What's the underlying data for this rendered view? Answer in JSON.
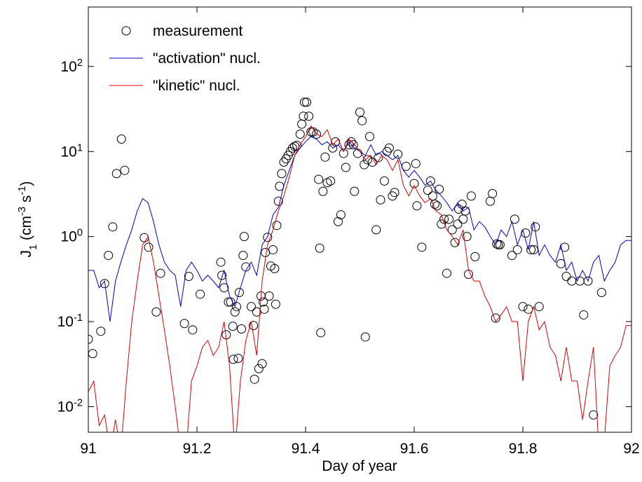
{
  "chart_data": {
    "type": "line",
    "xlabel": "Day of year",
    "ylabel": "J_{1} (cm^{-3} s^{-1})",
    "xlim": [
      91,
      92
    ],
    "xticks": [
      91,
      91.2,
      91.4,
      91.6,
      91.8,
      92
    ],
    "ylim": [
      0.005,
      500
    ],
    "ylog": true,
    "yticks": [
      {
        "value": 0.01,
        "label": "10^{-2}"
      },
      {
        "value": 0.1,
        "label": "10^{-1}"
      },
      {
        "value": 1,
        "label": "10^{0}"
      },
      {
        "value": 10,
        "label": "10^{1}"
      },
      {
        "value": 100,
        "label": "10^{2}"
      }
    ],
    "grid": false,
    "legend": "upper left",
    "series": [
      {
        "name": "measurement",
        "type": "scatter",
        "color": "#000000",
        "x": [
          91.0,
          91.008,
          91.023,
          91.03,
          91.037,
          91.045,
          91.052,
          91.061,
          91.067,
          91.103,
          91.111,
          91.125,
          91.133,
          91.177,
          91.185,
          91.192,
          91.206,
          91.244,
          91.246,
          91.25,
          91.254,
          91.258,
          91.262,
          91.266,
          91.267,
          91.27,
          91.273,
          91.276,
          91.278,
          91.282,
          91.285,
          91.287,
          91.29,
          91.3,
          91.304,
          91.306,
          91.31,
          91.314,
          91.318,
          91.32,
          91.322,
          91.324,
          91.326,
          91.33,
          91.333,
          91.336,
          91.34,
          91.343,
          91.345,
          91.347,
          91.35,
          91.352,
          91.356,
          91.36,
          91.364,
          91.368,
          91.372,
          91.376,
          91.38,
          91.384,
          91.39,
          91.393,
          91.396,
          91.398,
          91.402,
          91.406,
          91.41,
          91.414,
          91.42,
          91.424,
          91.426,
          91.428,
          91.432,
          91.436,
          91.44,
          91.446,
          91.45,
          91.455,
          91.46,
          91.465,
          91.47,
          91.474,
          91.48,
          91.484,
          91.488,
          91.49,
          91.496,
          91.5,
          91.504,
          91.508,
          91.51,
          91.514,
          91.518,
          91.523,
          91.53,
          91.534,
          91.538,
          91.545,
          91.55,
          91.554,
          91.56,
          91.564,
          91.57,
          91.585,
          91.6,
          91.603,
          91.605,
          91.614,
          91.625,
          91.63,
          91.634,
          91.638,
          91.642,
          91.646,
          91.65,
          91.655,
          91.66,
          91.664,
          91.67,
          91.675,
          91.68,
          91.682,
          91.688,
          91.69,
          91.694,
          91.697,
          91.7,
          91.705,
          91.712,
          91.74,
          91.744,
          91.75,
          91.752,
          91.755,
          91.758,
          91.78,
          91.785,
          91.79,
          91.8,
          91.805,
          91.81,
          91.815,
          91.82,
          91.823,
          91.83,
          91.87,
          91.877,
          91.88,
          91.89,
          91.905,
          91.912,
          91.92,
          91.93,
          91.945
        ],
        "values": [
          0.062,
          0.042,
          0.077,
          0.28,
          0.6,
          1.3,
          5.5,
          14,
          6,
          0.97,
          0.75,
          0.13,
          0.37,
          0.095,
          0.34,
          0.08,
          0.21,
          0.5,
          0.35,
          0.25,
          0.07,
          0.17,
          0.17,
          0.088,
          0.036,
          0.13,
          0.15,
          0.037,
          0.22,
          0.082,
          0.6,
          1.0,
          0.44,
          0.15,
          0.09,
          0.021,
          0.13,
          0.028,
          0.2,
          0.032,
          0.17,
          0.14,
          0.65,
          0.98,
          0.2,
          0.45,
          0.7,
          0.42,
          0.16,
          1.35,
          2.6,
          3.9,
          5.5,
          7.5,
          8.2,
          9,
          10,
          11,
          11.5,
          11.8,
          16,
          21,
          26,
          38,
          38,
          26,
          17,
          17,
          16,
          4.7,
          0.73,
          0.074,
          3.4,
          8.6,
          4.3,
          4.5,
          11,
          13,
          1.5,
          1.8,
          9.5,
          6.5,
          12,
          13,
          12,
          3.4,
          9.5,
          29,
          23,
          7,
          0.066,
          8,
          15,
          7.5,
          1.2,
          8.5,
          2.7,
          4.5,
          10,
          11,
          3,
          3.3,
          9.3,
          6.7,
          4.2,
          7.2,
          2.3,
          0.75,
          3.5,
          4.5,
          3,
          2.4,
          2.3,
          3.6,
          1.4,
          1.6,
          0.37,
          1.6,
          1.2,
          0.85,
          1.4,
          2.1,
          2.4,
          1.6,
          2.0,
          1.0,
          0.36,
          3,
          0.58,
          2.6,
          3.2,
          0.11,
          0.82,
          0.8,
          0.8,
          0.6,
          1.6,
          0.7,
          0.15,
          1.1,
          0.14,
          0.7,
          0.7,
          1.3,
          0.15,
          0.48,
          0.75,
          0.34,
          0.3,
          0.3,
          0.12,
          0.3,
          0.008,
          0.22
        ]
      },
      {
        "name": "\"activation\" nucl.",
        "type": "line",
        "color": "#0000cc",
        "x": [
          91.0,
          91.01,
          91.02,
          91.03,
          91.04,
          91.05,
          91.06,
          91.07,
          91.08,
          91.09,
          91.1,
          91.11,
          91.12,
          91.13,
          91.14,
          91.15,
          91.16,
          91.17,
          91.18,
          91.19,
          91.2,
          91.21,
          91.22,
          91.23,
          91.24,
          91.25,
          91.26,
          91.27,
          91.28,
          91.29,
          91.3,
          91.31,
          91.32,
          91.33,
          91.34,
          91.35,
          91.36,
          91.37,
          91.38,
          91.39,
          91.4,
          91.41,
          91.42,
          91.43,
          91.44,
          91.45,
          91.46,
          91.47,
          91.48,
          91.49,
          91.5,
          91.51,
          91.52,
          91.53,
          91.54,
          91.55,
          91.56,
          91.57,
          91.58,
          91.59,
          91.6,
          91.61,
          91.62,
          91.63,
          91.64,
          91.65,
          91.66,
          91.67,
          91.68,
          91.69,
          91.7,
          91.71,
          91.72,
          91.73,
          91.74,
          91.75,
          91.76,
          91.77,
          91.78,
          91.79,
          91.8,
          91.81,
          91.82,
          91.83,
          91.84,
          91.85,
          91.86,
          91.87,
          91.88,
          91.89,
          91.9,
          91.91,
          91.92,
          91.93,
          91.94,
          91.95,
          91.96,
          91.97,
          91.98,
          91.99,
          92.0
        ],
        "values": [
          0.4,
          0.4,
          0.25,
          0.3,
          0.1,
          0.3,
          0.5,
          0.8,
          1.2,
          2,
          2.8,
          2.5,
          1.5,
          0.8,
          0.5,
          0.4,
          0.35,
          0.15,
          0.4,
          0.5,
          0.4,
          0.3,
          0.35,
          0.3,
          0.25,
          0.4,
          0.2,
          0.15,
          0.25,
          0.4,
          0.5,
          0.35,
          0.8,
          1,
          1.8,
          2.2,
          4,
          6,
          9,
          11,
          13,
          15,
          14,
          12,
          13,
          11,
          12,
          10,
          13,
          11,
          10,
          9,
          12,
          9,
          10,
          9,
          8,
          9,
          6,
          5,
          6,
          5,
          4,
          4.5,
          3.5,
          3,
          2.5,
          2,
          2.5,
          2,
          2.2,
          1.2,
          1.5,
          1.3,
          1,
          0.8,
          1.2,
          1,
          1.5,
          0.8,
          1.2,
          0.7,
          1.5,
          0.6,
          0.8,
          0.6,
          0.5,
          0.8,
          0.4,
          0.5,
          0.3,
          0.4,
          0.3,
          0.5,
          0.6,
          0.3,
          0.4,
          0.5,
          0.8,
          0.9,
          0.9
        ]
      },
      {
        "name": "\"kinetic\" nucl.",
        "type": "line",
        "color": "#dd0000",
        "x": [
          91.0,
          91.01,
          91.02,
          91.03,
          91.04,
          91.05,
          91.06,
          91.07,
          91.08,
          91.09,
          91.1,
          91.11,
          91.12,
          91.13,
          91.14,
          91.15,
          91.16,
          91.17,
          91.18,
          91.19,
          91.2,
          91.21,
          91.22,
          91.23,
          91.24,
          91.25,
          91.26,
          91.27,
          91.28,
          91.29,
          91.3,
          91.31,
          91.32,
          91.33,
          91.34,
          91.35,
          91.36,
          91.37,
          91.38,
          91.39,
          91.4,
          91.41,
          91.42,
          91.43,
          91.44,
          91.45,
          91.46,
          91.47,
          91.48,
          91.49,
          91.5,
          91.51,
          91.52,
          91.53,
          91.54,
          91.55,
          91.56,
          91.57,
          91.58,
          91.59,
          91.6,
          91.61,
          91.62,
          91.63,
          91.64,
          91.65,
          91.66,
          91.67,
          91.68,
          91.69,
          91.7,
          91.71,
          91.72,
          91.73,
          91.74,
          91.75,
          91.76,
          91.77,
          91.78,
          91.79,
          91.8,
          91.81,
          91.82,
          91.83,
          91.84,
          91.85,
          91.86,
          91.87,
          91.88,
          91.89,
          91.9,
          91.91,
          91.92,
          91.93,
          91.94,
          91.95,
          91.96,
          91.97,
          91.98,
          91.99,
          92.0
        ],
        "values": [
          0.015,
          0.02,
          0.006,
          0.008,
          0.003,
          0.007,
          0.003,
          0.02,
          0.1,
          0.3,
          0.8,
          1,
          0.5,
          0.2,
          0.08,
          0.03,
          0.01,
          0.003,
          0.003,
          0.02,
          0.03,
          0.05,
          0.06,
          0.04,
          0.05,
          0.1,
          0.03,
          0.003,
          0.02,
          0.06,
          0.1,
          0.04,
          0.3,
          0.8,
          1.2,
          2,
          3,
          5,
          9,
          12,
          15,
          20,
          16,
          15,
          18,
          12,
          14,
          10,
          14,
          12,
          10,
          8,
          9,
          7,
          9,
          8,
          6,
          8,
          4,
          3,
          4,
          3,
          2.5,
          2.8,
          2,
          1.8,
          1.2,
          1,
          0.8,
          1.2,
          0.4,
          0.3,
          0.3,
          0.2,
          0.15,
          0.1,
          0.12,
          0.15,
          0.1,
          0.1,
          0.02,
          0.1,
          0.15,
          0.08,
          0.1,
          0.05,
          0.04,
          0.02,
          0.05,
          0.02,
          0.02,
          0.007,
          0.02,
          0.05,
          0.003,
          0.004,
          0.03,
          0.04,
          0.05,
          0.09,
          0.09
        ]
      }
    ]
  }
}
